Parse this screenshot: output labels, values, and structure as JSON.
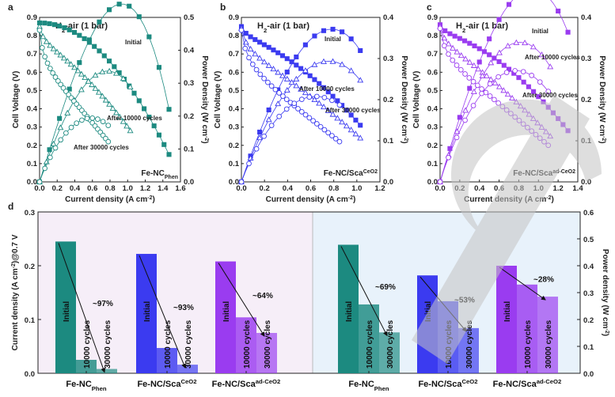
{
  "colors": {
    "teal": "#1c8a80",
    "blue": "#3b3bf0",
    "purple": "#9a3cf0",
    "bg_left": "#f6eef8",
    "bg_right": "#e8f2fb",
    "watermark": "#c4c4c4"
  },
  "chart_data": [
    {
      "panel": "a",
      "type": "line",
      "title": "H2-air (1 bar)",
      "material_label": "Fe-NC",
      "material_sub": "Phen",
      "xlabel": "Current density (A cm",
      "xlabel_exp": "-2",
      "xlabel_end": ")",
      "ylabel": "Cell Voltage (V)",
      "y2label": "Power Density (W cm",
      "y2label_exp": "-2",
      "y2label_end": ")",
      "xlim": [
        0,
        1.6
      ],
      "ylim": [
        0,
        0.9
      ],
      "y2lim": [
        0,
        0.5
      ],
      "xticks": [
        "0.0",
        "0.2",
        "0.4",
        "0.6",
        "0.8",
        "1.0",
        "1.2",
        "1.4",
        "1.6"
      ],
      "yticks": [
        "0.0",
        "0.1",
        "0.2",
        "0.3",
        "0.4",
        "0.5",
        "0.6",
        "0.7",
        "0.8",
        "0.9"
      ],
      "y2ticks": [
        "0.0",
        "0.1",
        "0.2",
        "0.3",
        "0.4",
        "0.5"
      ],
      "annotations": [
        "Initial",
        "After 10000 cycles",
        "After 30000 cycles"
      ],
      "series": [
        {
          "name": "Initial",
          "cycles": 0,
          "imax": 1.47,
          "v0": 0.87,
          "vend": 0.15,
          "k": 0.0,
          "n": 2.0,
          "axis": "voltage"
        },
        {
          "name": "After 10000 cycles",
          "cycles": 10000,
          "imax": 1.03,
          "v0": 0.85,
          "vend": 0.28,
          "k": 0.18,
          "n": 1.6,
          "axis": "voltage"
        },
        {
          "name": "After 30000 cycles",
          "cycles": 30000,
          "imax": 0.78,
          "v0": 0.83,
          "vend": 0.22,
          "k": 0.35,
          "n": 1.4,
          "axis": "voltage"
        }
      ]
    },
    {
      "panel": "b",
      "type": "line",
      "title": "H2-air (1 bar)",
      "material_label": "Fe-NC/Sca",
      "material_sub": "CeO2",
      "xlabel": "Current density (A cm",
      "xlabel_exp": "-2",
      "xlabel_end": ")",
      "ylabel": "Cell Voltage (V)",
      "y2label": "Power Density (W cm",
      "y2label_exp": "-2",
      "y2label_end": ")",
      "xlim": [
        0,
        1.2
      ],
      "ylim": [
        0,
        0.9
      ],
      "y2lim": [
        0,
        0.4
      ],
      "xticks": [
        "0.0",
        "0.2",
        "0.4",
        "0.6",
        "0.8",
        "1.0",
        "1.2"
      ],
      "yticks": [
        "0.0",
        "0.1",
        "0.2",
        "0.3",
        "0.4",
        "0.5",
        "0.6",
        "0.7",
        "0.8",
        "0.9"
      ],
      "y2ticks": [
        "0.0",
        "0.1",
        "0.2",
        "0.3",
        "0.4"
      ],
      "annotations": [
        "Initial",
        "After 10000 cycles",
        "After 30000 cycles"
      ],
      "series": [
        {
          "name": "Initial",
          "cycles": 0,
          "imax": 1.03,
          "v0": 0.85,
          "vend": 0.31,
          "k": 0.12,
          "n": 1.7,
          "axis": "voltage"
        },
        {
          "name": "After 10000 cycles",
          "cycles": 10000,
          "imax": 1.03,
          "v0": 0.84,
          "vend": 0.24,
          "k": 0.25,
          "n": 1.5,
          "axis": "voltage"
        },
        {
          "name": "After 30000 cycles",
          "cycles": 30000,
          "imax": 0.85,
          "v0": 0.83,
          "vend": 0.22,
          "k": 0.35,
          "n": 1.3,
          "axis": "voltage"
        }
      ]
    },
    {
      "panel": "c",
      "type": "line",
      "title": "H2-air (1 bar)",
      "material_label": "Fe-NC/Sca",
      "material_sub": "ad-CeO2",
      "xlabel": "Current density (A cm",
      "xlabel_exp": "-2",
      "xlabel_end": ")",
      "ylabel": "Cell Voltage (V)",
      "y2label": "Power Density (W cm",
      "y2label_exp": "-2",
      "y2label_end": ")",
      "xlim": [
        0,
        1.4
      ],
      "ylim": [
        0,
        0.9
      ],
      "y2lim": [
        0,
        0.4
      ],
      "xticks": [
        "0.0",
        "0.2",
        "0.4",
        "0.6",
        "0.8",
        "1.0",
        "1.2",
        "1.4"
      ],
      "yticks": [
        "0.0",
        "0.1",
        "0.2",
        "0.3",
        "0.4",
        "0.5",
        "0.6",
        "0.7",
        "0.8",
        "0.9"
      ],
      "y2ticks": [
        "0.0",
        "0.1",
        "0.2",
        "0.3",
        "0.4"
      ],
      "annotations": [
        "Initial",
        "After 10000 cycles",
        "After 30000 cycles"
      ],
      "series": [
        {
          "name": "Initial",
          "cycles": 0,
          "imax": 1.3,
          "v0": 0.86,
          "vend": 0.28,
          "k": 0.1,
          "n": 1.8,
          "axis": "voltage"
        },
        {
          "name": "After 10000 cycles",
          "cycles": 10000,
          "imax": 1.12,
          "v0": 0.85,
          "vend": 0.25,
          "k": 0.2,
          "n": 1.5,
          "axis": "voltage"
        },
        {
          "name": "After 30000 cycles",
          "cycles": 30000,
          "imax": 1.1,
          "v0": 0.84,
          "vend": 0.2,
          "k": 0.3,
          "n": 1.3,
          "axis": "voltage"
        }
      ]
    },
    {
      "panel": "d",
      "type": "bar",
      "ylabel": "Current density (A cm",
      "ylabel_exp": "-2",
      "ylabel_end": ")@0.7 V",
      "y2label": "Power density (W cm",
      "y2label_exp": "-2",
      "y2label_end": ")",
      "ylim": [
        0,
        0.3
      ],
      "y2lim": [
        0,
        0.6
      ],
      "yticks": [
        "0.0",
        "0.1",
        "0.2",
        "0.3"
      ],
      "y2ticks": [
        "0.0",
        "0.1",
        "0.2",
        "0.3",
        "0.4",
        "0.5",
        "0.6"
      ],
      "bar_labels": [
        "Initial",
        "10000 cycles",
        "30000 cycles"
      ],
      "groups": [
        {
          "name": "Fe-NC",
          "sub": "Phen",
          "metric": "current_density_0p7V",
          "values": [
            0.245,
            0.025,
            0.008
          ],
          "drop": "~97%",
          "color": "teal"
        },
        {
          "name": "Fe-NC/Sca",
          "sup": "CeO2",
          "metric": "current_density_0p7V",
          "values": [
            0.222,
            0.047,
            0.016
          ],
          "drop": "~93%",
          "color": "blue"
        },
        {
          "name": "Fe-NC/Sca",
          "sup": "ad-CeO2",
          "metric": "current_density_0p7V",
          "values": [
            0.208,
            0.104,
            0.075
          ],
          "drop": "~64%",
          "color": "purple"
        },
        {
          "name": "Fe-NC",
          "sub": "Phen",
          "metric": "peak_power_density",
          "values": [
            0.478,
            0.256,
            0.152
          ],
          "drop": "~69%",
          "color": "teal"
        },
        {
          "name": "Fe-NC/Sca",
          "sup": "CeO2",
          "metric": "peak_power_density",
          "values": [
            0.364,
            0.268,
            0.168
          ],
          "drop": "~53%",
          "color": "blue"
        },
        {
          "name": "Fe-NC/Sca",
          "sup": "ad-CeO2",
          "metric": "peak_power_density",
          "values": [
            0.4,
            0.33,
            0.285
          ],
          "drop": "~28%",
          "color": "purple"
        }
      ]
    }
  ]
}
